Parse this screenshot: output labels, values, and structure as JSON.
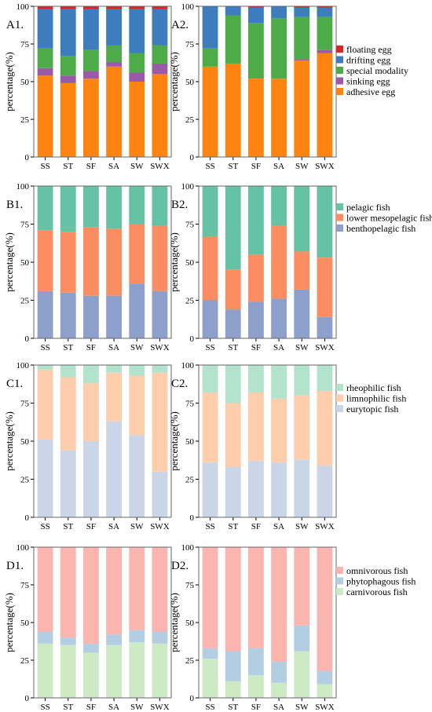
{
  "categories": [
    "SS",
    "ST",
    "SF",
    "SA",
    "SW",
    "SWX"
  ],
  "y_ticks": [
    "0",
    "25",
    "50",
    "75",
    "100"
  ],
  "ylabel": "percentage(%)",
  "chart_data": [
    {
      "type": "stacked bar",
      "panel": "A1.",
      "categories": [
        "SS",
        "ST",
        "SF",
        "SA",
        "SW",
        "SWX"
      ],
      "ylim": [
        0,
        100
      ],
      "ylabel": "percentage(%)",
      "series": [
        {
          "name": "adhesive egg",
          "values": [
            54,
            49,
            52,
            60,
            50,
            55
          ]
        },
        {
          "name": "sinking egg",
          "values": [
            5,
            5,
            5,
            3,
            6,
            7
          ]
        },
        {
          "name": "special modality",
          "values": [
            13,
            13,
            14,
            11,
            13,
            12
          ]
        },
        {
          "name": "drifting egg",
          "values": [
            26,
            31,
            27,
            24,
            29,
            24
          ]
        },
        {
          "name": "floating egg",
          "values": [
            2,
            2,
            2,
            2,
            2,
            2
          ]
        }
      ]
    },
    {
      "type": "stacked bar",
      "panel": "A2.",
      "categories": [
        "SS",
        "ST",
        "SF",
        "SA",
        "SW",
        "SWX"
      ],
      "ylim": [
        0,
        100
      ],
      "ylabel": "percentage(%)",
      "series": [
        {
          "name": "adhesive egg",
          "values": [
            60,
            62,
            52,
            52,
            64,
            69
          ]
        },
        {
          "name": "sinking egg",
          "values": [
            0,
            0,
            0,
            0,
            1,
            2
          ]
        },
        {
          "name": "special modality",
          "values": [
            12,
            32,
            37,
            40,
            28,
            22
          ]
        },
        {
          "name": "drifting egg",
          "values": [
            28,
            6,
            10,
            8,
            6,
            6
          ]
        },
        {
          "name": "floating egg",
          "values": [
            0,
            0,
            1,
            0,
            1,
            1
          ]
        }
      ]
    },
    {
      "type": "stacked bar",
      "panel": "B1.",
      "categories": [
        "SS",
        "ST",
        "SF",
        "SA",
        "SW",
        "SWX"
      ],
      "ylim": [
        0,
        100
      ],
      "ylabel": "percentage(%)",
      "series": [
        {
          "name": "benthopelagic fish",
          "values": [
            31,
            30,
            28,
            28,
            36,
            31
          ]
        },
        {
          "name": "lower mesopelagic fish",
          "values": [
            40,
            40,
            45,
            44,
            39,
            43
          ]
        },
        {
          "name": "pelagic fish",
          "values": [
            29,
            30,
            27,
            28,
            25,
            26
          ]
        }
      ]
    },
    {
      "type": "stacked bar",
      "panel": "B2.",
      "categories": [
        "SS",
        "ST",
        "SF",
        "SA",
        "SW",
        "SWX"
      ],
      "ylim": [
        0,
        100
      ],
      "ylabel": "percentage(%)",
      "series": [
        {
          "name": "benthopelagic fish",
          "values": [
            25,
            19,
            24,
            26,
            32,
            14
          ]
        },
        {
          "name": "lower mesopelagic fish",
          "values": [
            42,
            26,
            31,
            48,
            25,
            39
          ]
        },
        {
          "name": "pelagic fish",
          "values": [
            33,
            55,
            45,
            26,
            43,
            47
          ]
        }
      ]
    },
    {
      "type": "stacked bar",
      "panel": "C1.",
      "categories": [
        "SS",
        "ST",
        "SF",
        "SA",
        "SW",
        "SWX"
      ],
      "ylim": [
        0,
        100
      ],
      "ylabel": "percentage(%)",
      "series": [
        {
          "name": "eurytopic fish",
          "values": [
            51,
            44,
            50,
            63,
            54,
            30
          ]
        },
        {
          "name": "limnophilic fish",
          "values": [
            46,
            48,
            38,
            32,
            39,
            65
          ]
        },
        {
          "name": "rheophilic fish",
          "values": [
            3,
            8,
            12,
            5,
            7,
            5
          ]
        }
      ]
    },
    {
      "type": "stacked bar",
      "panel": "C2.",
      "categories": [
        "SS",
        "ST",
        "SF",
        "SA",
        "SW",
        "SWX"
      ],
      "ylim": [
        0,
        100
      ],
      "ylabel": "percentage(%)",
      "series": [
        {
          "name": "eurytopic fish",
          "values": [
            36,
            33,
            37,
            36,
            38,
            34
          ]
        },
        {
          "name": "limnophilic fish",
          "values": [
            46,
            42,
            45,
            42,
            42,
            49
          ]
        },
        {
          "name": "rheophilic fish",
          "values": [
            18,
            25,
            18,
            22,
            20,
            17
          ]
        }
      ]
    },
    {
      "type": "stacked bar",
      "panel": "D1.",
      "categories": [
        "SS",
        "ST",
        "SF",
        "SA",
        "SW",
        "SWX"
      ],
      "ylim": [
        0,
        100
      ],
      "ylabel": "percentage(%)",
      "series": [
        {
          "name": "carnivorous fish",
          "values": [
            36,
            35,
            30,
            35,
            37,
            36
          ]
        },
        {
          "name": "phytophagous fish",
          "values": [
            8,
            5,
            6,
            7,
            8,
            8
          ]
        },
        {
          "name": "omnivorous fish",
          "values": [
            56,
            60,
            64,
            58,
            55,
            56
          ]
        }
      ]
    },
    {
      "type": "stacked bar",
      "panel": "D2.",
      "categories": [
        "SS",
        "ST",
        "SF",
        "SA",
        "SW",
        "SWX"
      ],
      "ylim": [
        0,
        100
      ],
      "ylabel": "percentage(%)",
      "series": [
        {
          "name": "carnivorous fish",
          "values": [
            26,
            11,
            15,
            10,
            31,
            9
          ]
        },
        {
          "name": "phytophagous fish",
          "values": [
            7,
            20,
            18,
            14,
            17,
            9
          ]
        },
        {
          "name": "omnivorous fish",
          "values": [
            67,
            69,
            67,
            76,
            52,
            82
          ]
        }
      ]
    }
  ],
  "rows": [
    {
      "legend": [
        {
          "name": "floating egg",
          "color": "#d62728"
        },
        {
          "name": "drifting egg",
          "color": "#3d7dbd"
        },
        {
          "name": "special modality",
          "color": "#4eac48"
        },
        {
          "name": "sinking egg",
          "color": "#9a5aa8"
        },
        {
          "name": "adhesive egg",
          "color": "#fd8410"
        }
      ],
      "stack_colors": [
        "#fd8410",
        "#9a5aa8",
        "#4eac48",
        "#3d7dbd",
        "#d62728"
      ]
    },
    {
      "legend": [
        {
          "name": "pelagic fish",
          "color": "#66c2a5"
        },
        {
          "name": "lower mesopelagic fish",
          "color": "#fc8d62"
        },
        {
          "name": "benthopelagic fish",
          "color": "#8da0cb"
        }
      ],
      "stack_colors": [
        "#8da0cb",
        "#fc8d62",
        "#66c2a5"
      ]
    },
    {
      "legend": [
        {
          "name": "rheophilic fish",
          "color": "#b3e2cd"
        },
        {
          "name": "limnophilic fish",
          "color": "#fdcdac"
        },
        {
          "name": "eurytopic fish",
          "color": "#cbd5e8"
        }
      ],
      "stack_colors": [
        "#cbd5e8",
        "#fdcdac",
        "#b3e2cd"
      ]
    },
    {
      "legend": [
        {
          "name": "omnivorous fish",
          "color": "#fbb4ae"
        },
        {
          "name": "phytophagous fish",
          "color": "#b3cde3"
        },
        {
          "name": "carnivorous fish",
          "color": "#ccebc5"
        }
      ],
      "stack_colors": [
        "#ccebc5",
        "#b3cde3",
        "#fbb4ae"
      ]
    }
  ]
}
